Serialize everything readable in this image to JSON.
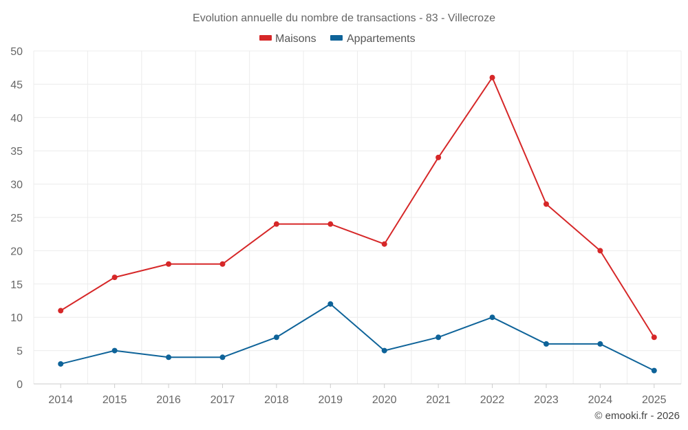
{
  "chart_data": {
    "type": "line",
    "title": "Evolution annuelle du nombre de transactions - 83 - Villecroze",
    "categories": [
      "2014",
      "2015",
      "2016",
      "2017",
      "2018",
      "2019",
      "2020",
      "2021",
      "2022",
      "2023",
      "2024",
      "2025"
    ],
    "series": [
      {
        "name": "Maisons",
        "color": "#d62728",
        "values": [
          11,
          16,
          18,
          18,
          24,
          24,
          21,
          34,
          46,
          27,
          20,
          7
        ]
      },
      {
        "name": "Appartements",
        "color": "#0e6399",
        "values": [
          3,
          5,
          4,
          4,
          7,
          12,
          5,
          7,
          10,
          6,
          6,
          2
        ]
      }
    ],
    "ylim": [
      0,
      50
    ],
    "yticks": [
      0,
      5,
      10,
      15,
      20,
      25,
      30,
      35,
      40,
      45,
      50
    ],
    "grid": true,
    "legend": "top-center",
    "xlabel": "",
    "ylabel": ""
  },
  "credit": "© emooki.fr - 2026"
}
